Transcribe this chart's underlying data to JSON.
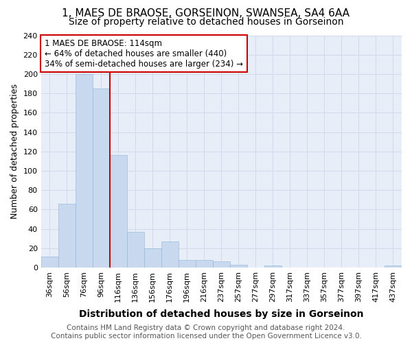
{
  "title": "1, MAES DE BRAOSE, GORSEINON, SWANSEA, SA4 6AA",
  "subtitle": "Size of property relative to detached houses in Gorseinon",
  "xlabel": "Distribution of detached houses by size in Gorseinon",
  "ylabel": "Number of detached properties",
  "categories": [
    "36sqm",
    "56sqm",
    "76sqm",
    "96sqm",
    "116sqm",
    "136sqm",
    "156sqm",
    "176sqm",
    "196sqm",
    "216sqm",
    "237sqm",
    "257sqm",
    "277sqm",
    "297sqm",
    "317sqm",
    "337sqm",
    "357sqm",
    "377sqm",
    "397sqm",
    "417sqm",
    "437sqm"
  ],
  "values": [
    11,
    66,
    200,
    185,
    116,
    37,
    20,
    27,
    8,
    8,
    6,
    3,
    0,
    2,
    0,
    0,
    0,
    0,
    0,
    0,
    2
  ],
  "bar_color": "#c8d8ee",
  "bar_edge_color": "#8ab4d8",
  "vline_color": "#cc0000",
  "annotation_line1": "1 MAES DE BRAOSE: 114sqm",
  "annotation_line2": "← 64% of detached houses are smaller (440)",
  "annotation_line3": "34% of semi-detached houses are larger (234) →",
  "annotation_box_color": "#ffffff",
  "annotation_box_edge": "#cc0000",
  "ylim": [
    0,
    240
  ],
  "yticks": [
    0,
    20,
    40,
    60,
    80,
    100,
    120,
    140,
    160,
    180,
    200,
    220,
    240
  ],
  "grid_color": "#d0daec",
  "background_color": "#e8eef8",
  "footer_text": "Contains HM Land Registry data © Crown copyright and database right 2024.\nContains public sector information licensed under the Open Government Licence v3.0.",
  "title_fontsize": 11,
  "subtitle_fontsize": 10,
  "xlabel_fontsize": 10,
  "ylabel_fontsize": 9,
  "tick_fontsize": 8,
  "annotation_fontsize": 8.5,
  "footer_fontsize": 7.5,
  "vline_x_index": 3.5
}
